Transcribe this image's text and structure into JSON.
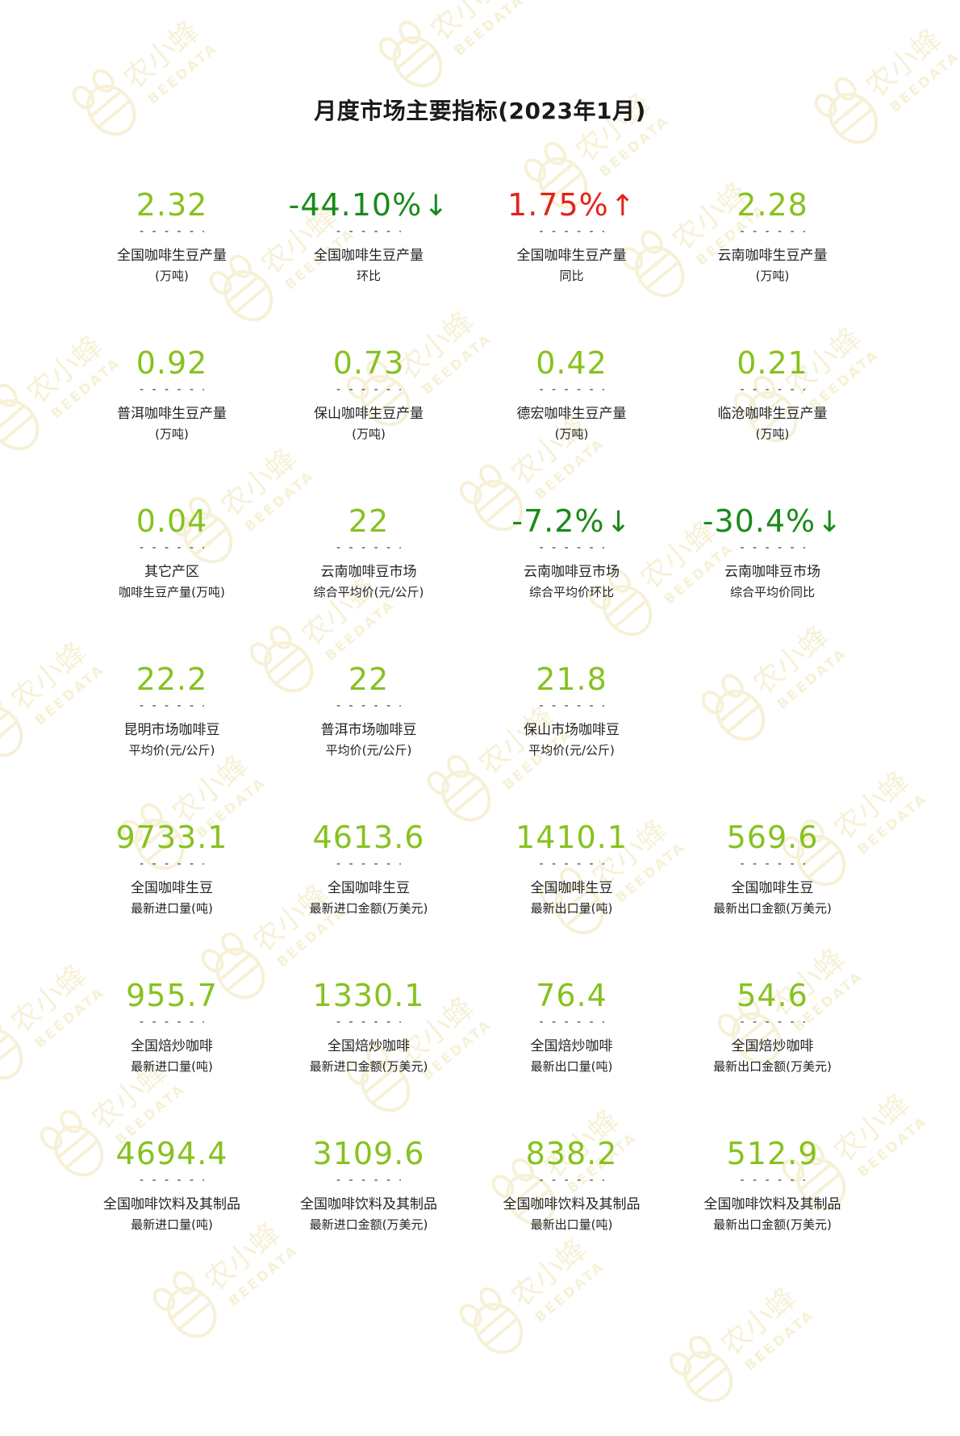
{
  "title": "月度市场主要指标(2023年1月)",
  "watermark": {
    "cn": "农小蜂",
    "en": "BEEDATA",
    "color": "#f0e7b8"
  },
  "colors": {
    "value": "#86c21e",
    "up": "#e2231a",
    "down": "#1a8a1a"
  },
  "dash": "- - - - - - - -",
  "metrics": [
    {
      "value": "2.32",
      "label1": "全国咖啡生豆产量",
      "label2": "(万吨)",
      "trend": "none",
      "arrow": ""
    },
    {
      "value": "-44.10%",
      "label1": "全国咖啡生豆产量",
      "label2": "环比",
      "trend": "down",
      "arrow": "↓"
    },
    {
      "value": "1.75%",
      "label1": "全国咖啡生豆产量",
      "label2": "同比",
      "trend": "up",
      "arrow": "↑"
    },
    {
      "value": "2.28",
      "label1": "云南咖啡生豆产量",
      "label2": "(万吨)",
      "trend": "none",
      "arrow": ""
    },
    {
      "value": "0.92",
      "label1": "普洱咖啡生豆产量",
      "label2": "(万吨)",
      "trend": "none",
      "arrow": ""
    },
    {
      "value": "0.73",
      "label1": "保山咖啡生豆产量",
      "label2": "(万吨)",
      "trend": "none",
      "arrow": ""
    },
    {
      "value": "0.42",
      "label1": "德宏咖啡生豆产量",
      "label2": "(万吨)",
      "trend": "none",
      "arrow": ""
    },
    {
      "value": "0.21",
      "label1": "临沧咖啡生豆产量",
      "label2": "(万吨)",
      "trend": "none",
      "arrow": ""
    },
    {
      "value": "0.04",
      "label1": "其它产区",
      "label2": "咖啡生豆产量(万吨)",
      "trend": "none",
      "arrow": ""
    },
    {
      "value": "22",
      "label1": "云南咖啡豆市场",
      "label2": "综合平均价(元/公斤)",
      "trend": "none",
      "arrow": ""
    },
    {
      "value": "-7.2%",
      "label1": "云南咖啡豆市场",
      "label2": "综合平均价环比",
      "trend": "down",
      "arrow": "↓"
    },
    {
      "value": "-30.4%",
      "label1": "云南咖啡豆市场",
      "label2": "综合平均价同比",
      "trend": "down",
      "arrow": "↓"
    },
    {
      "value": "22.2",
      "label1": "昆明市场咖啡豆",
      "label2": "平均价(元/公斤)",
      "trend": "none",
      "arrow": ""
    },
    {
      "value": "22",
      "label1": "普洱市场咖啡豆",
      "label2": "平均价(元/公斤)",
      "trend": "none",
      "arrow": ""
    },
    {
      "value": "21.8",
      "label1": "保山市场咖啡豆",
      "label2": "平均价(元/公斤)",
      "trend": "none",
      "arrow": ""
    },
    {
      "empty": true
    },
    {
      "value": "9733.1",
      "label1": "全国咖啡生豆",
      "label2": "最新进口量(吨)",
      "trend": "none",
      "arrow": ""
    },
    {
      "value": "4613.6",
      "label1": "全国咖啡生豆",
      "label2": "最新进口金额(万美元)",
      "trend": "none",
      "arrow": ""
    },
    {
      "value": "1410.1",
      "label1": "全国咖啡生豆",
      "label2": "最新出口量(吨)",
      "trend": "none",
      "arrow": ""
    },
    {
      "value": "569.6",
      "label1": "全国咖啡生豆",
      "label2": "最新出口金额(万美元)",
      "trend": "none",
      "arrow": ""
    },
    {
      "value": "955.7",
      "label1": "全国焙炒咖啡",
      "label2": "最新进口量(吨)",
      "trend": "none",
      "arrow": ""
    },
    {
      "value": "1330.1",
      "label1": "全国焙炒咖啡",
      "label2": "最新进口金额(万美元)",
      "trend": "none",
      "arrow": ""
    },
    {
      "value": "76.4",
      "label1": "全国焙炒咖啡",
      "label2": "最新出口量(吨)",
      "trend": "none",
      "arrow": ""
    },
    {
      "value": "54.6",
      "label1": "全国焙炒咖啡",
      "label2": "最新出口金额(万美元)",
      "trend": "none",
      "arrow": ""
    },
    {
      "value": "4694.4",
      "label1": "全国咖啡饮料及其制品",
      "label2": "最新进口量(吨)",
      "trend": "none",
      "arrow": ""
    },
    {
      "value": "3109.6",
      "label1": "全国咖啡饮料及其制品",
      "label2": "最新进口金额(万美元)",
      "trend": "none",
      "arrow": ""
    },
    {
      "value": "838.2",
      "label1": "全国咖啡饮料及其制品",
      "label2": "最新出口量(吨)",
      "trend": "none",
      "arrow": ""
    },
    {
      "value": "512.9",
      "label1": "全国咖啡饮料及其制品",
      "label2": "最新出口金额(万美元)",
      "trend": "none",
      "arrow": ""
    }
  ]
}
